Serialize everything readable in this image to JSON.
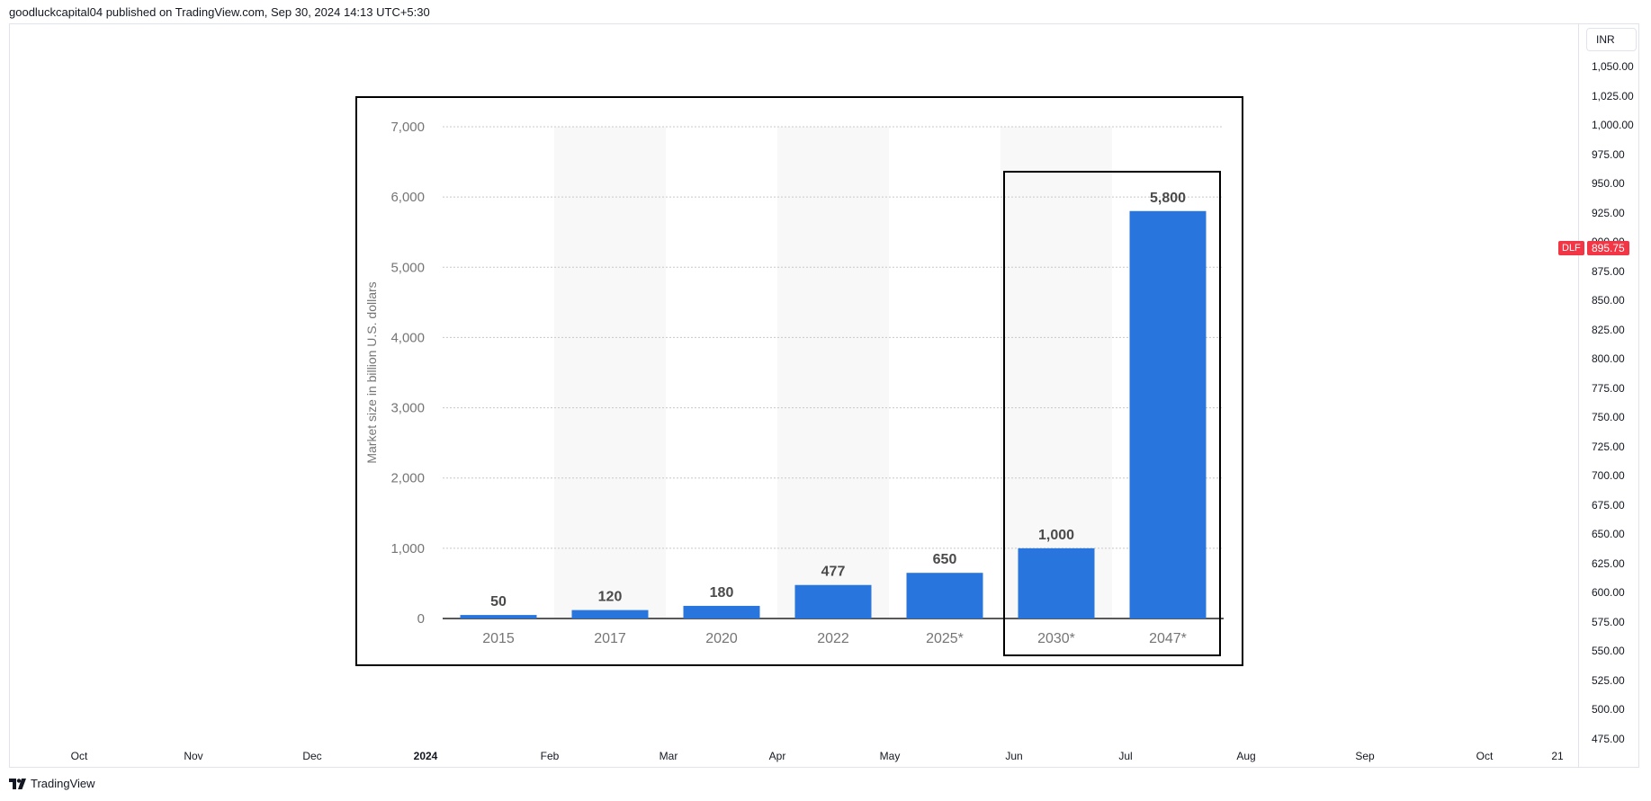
{
  "header": {
    "published_text": "goodluckcapital04 published on TradingView.com, Sep 30, 2024 14:13 UTC+5:30"
  },
  "price_axis": {
    "currency": "INR",
    "ticks": [
      "1,050.00",
      "1,025.00",
      "1,000.00",
      "975.00",
      "950.00",
      "925.00",
      "900.00",
      "875.00",
      "850.00",
      "825.00",
      "800.00",
      "775.00",
      "750.00",
      "725.00",
      "700.00",
      "675.00",
      "650.00",
      "625.00",
      "600.00",
      "575.00",
      "550.00",
      "525.00",
      "500.00",
      "475.00"
    ],
    "symbol_label": "DLF",
    "symbol_price": "895.75",
    "label_color": "#f23645"
  },
  "time_axis": {
    "ticks": [
      {
        "label": "Oct",
        "bold": false
      },
      {
        "label": "Nov",
        "bold": false
      },
      {
        "label": "Dec",
        "bold": false
      },
      {
        "label": "2024",
        "bold": true
      },
      {
        "label": "Feb",
        "bold": false
      },
      {
        "label": "Mar",
        "bold": false
      },
      {
        "label": "Apr",
        "bold": false
      },
      {
        "label": "May",
        "bold": false
      },
      {
        "label": "Jun",
        "bold": false
      },
      {
        "label": "Jul",
        "bold": false
      },
      {
        "label": "Aug",
        "bold": false
      },
      {
        "label": "Sep",
        "bold": false
      },
      {
        "label": "Oct",
        "bold": false
      },
      {
        "label": "21",
        "bold": false
      }
    ]
  },
  "footer": {
    "brand": "TradingView",
    "logo_icon": "tradingview-logo-icon"
  },
  "chart_data": {
    "type": "bar",
    "categories": [
      "2015",
      "2017",
      "2020",
      "2022",
      "2025*",
      "2030*",
      "2047*"
    ],
    "values": [
      50,
      120,
      180,
      477,
      650,
      1000,
      5800
    ],
    "value_labels": [
      "50",
      "120",
      "180",
      "477",
      "650",
      "1,000",
      "5,800"
    ],
    "ylabel": "Market size in billion U.S. dollars",
    "ylim": [
      0,
      7000
    ],
    "yticks": [
      0,
      1000,
      2000,
      3000,
      4000,
      5000,
      6000,
      7000
    ],
    "ytick_labels": [
      "0",
      "1,000",
      "2,000",
      "3,000",
      "4,000",
      "5,000",
      "6,000",
      "7,000"
    ],
    "grid": true,
    "bar_color": "#2876dd",
    "highlighted_categories": [
      "2030*",
      "2047*"
    ]
  }
}
